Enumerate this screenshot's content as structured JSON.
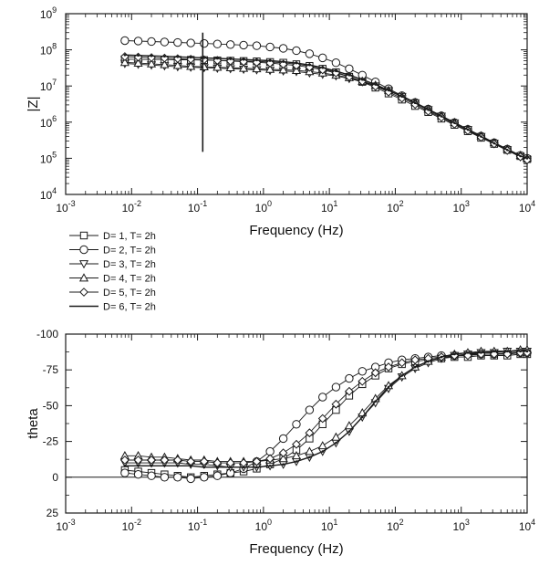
{
  "chart_data": [
    {
      "type": "scatter",
      "ylabel": "|Z|",
      "xlabel": "Frequency (Hz)",
      "xscale": "log",
      "yscale": "log",
      "xlim": [
        0.001,
        10000
      ],
      "ylim": [
        10000,
        1000000000
      ],
      "xticks": [
        "10-3",
        "10-2",
        "10-1",
        "100",
        "101",
        "102",
        "103",
        "104"
      ],
      "yticks": [
        "104",
        "105",
        "106",
        "107",
        "108",
        "109"
      ],
      "x": [
        0.0079,
        0.0126,
        0.02,
        0.0316,
        0.05,
        0.079,
        0.126,
        0.2,
        0.316,
        0.5,
        0.79,
        1.26,
        2.0,
        3.16,
        5.0,
        7.9,
        12.6,
        20,
        31.6,
        50,
        79,
        126,
        200,
        316,
        500,
        790,
        1260,
        2000,
        3160,
        5000,
        7900,
        10000
      ],
      "series": [
        {
          "name": "D= 1, T= 2h",
          "marker": "square",
          "values": [
            55000000.0,
            55000000.0,
            54000000.0,
            54000000.0,
            53000000.0,
            53000000.0,
            52000000.0,
            51000000.0,
            50000000.0,
            49000000.0,
            48000000.0,
            46000000.0,
            44000000.0,
            40000000.0,
            36000000.0,
            30000000.0,
            24000000.0,
            18000000.0,
            13000000.0,
            9000000.0,
            6200000.0,
            4200000.0,
            2800000.0,
            1900000.0,
            1250000.0,
            840000.0,
            560000.0,
            370000.0,
            250000.0,
            170000.0,
            115000.0,
            95000.0
          ]
        },
        {
          "name": "D= 2, T= 2h",
          "marker": "circle",
          "values": [
            180000000.0,
            175000000.0,
            170000000.0,
            165000000.0,
            160000000.0,
            155000000.0,
            150000000.0,
            145000000.0,
            140000000.0,
            135000000.0,
            130000000.0,
            120000000.0,
            110000000.0,
            95000000.0,
            78000000.0,
            60000000.0,
            44000000.0,
            30000000.0,
            20000000.0,
            13000000.0,
            8400000.0,
            5400000.0,
            3500000.0,
            2300000.0,
            1500000.0,
            970000.0,
            630000.0,
            410000.0,
            270000.0,
            180000.0,
            120000.0,
            100000.0
          ]
        },
        {
          "name": "D= 3, T= 2h",
          "marker": "triangle-down",
          "values": [
            42000000.0,
            40000000.0,
            38000000.0,
            36000000.0,
            34000000.0,
            33000000.0,
            32000000.0,
            31000000.0,
            30000000.0,
            29000000.0,
            28000000.0,
            27000000.0,
            26000000.0,
            25000000.0,
            23000000.0,
            21000000.0,
            19000000.0,
            16000000.0,
            13000000.0,
            10000000.0,
            7400000.0,
            5100000.0,
            3400000.0,
            2200000.0,
            1450000.0,
            950000.0,
            620000.0,
            400000.0,
            260000.0,
            170000.0,
            110000.0,
            90000.0
          ]
        },
        {
          "name": "D= 4, T= 2h",
          "marker": "triangle-up",
          "values": [
            45000000.0,
            43000000.0,
            41000000.0,
            39000000.0,
            37000000.0,
            35000000.0,
            34000000.0,
            33000000.0,
            32000000.0,
            31000000.0,
            30000000.0,
            29000000.0,
            28000000.0,
            27000000.0,
            25000000.0,
            23000000.0,
            20000000.0,
            17000000.0,
            13500000.0,
            10500000.0,
            7600000.0,
            5200000.0,
            3500000.0,
            2300000.0,
            1500000.0,
            980000.0,
            640000.0,
            420000.0,
            270000.0,
            180000.0,
            120000.0,
            100000.0
          ]
        },
        {
          "name": "D= 5, T= 2h",
          "marker": "diamond",
          "values": [
            65000000.0,
            63000000.0,
            61000000.0,
            59000000.0,
            57000000.0,
            55000000.0,
            53000000.0,
            51000000.0,
            49000000.0,
            47000000.0,
            45000000.0,
            43000000.0,
            40000000.0,
            37000000.0,
            33000000.0,
            28000000.0,
            23000000.0,
            18000000.0,
            13500000.0,
            9800000.0,
            6800000.0,
            4600000.0,
            3100000.0,
            2000000.0,
            1350000.0,
            880000.0,
            580000.0,
            380000.0,
            250000.0,
            165000.0,
            110000.0,
            90000.0
          ]
        },
        {
          "name": "D= 6, T= 2h",
          "marker": "line",
          "values": [
            72000000.0,
            70000000.0,
            68000000.0,
            66000000.0,
            64000000.0,
            62000000.0,
            60000000.0,
            58000000.0,
            56000000.0,
            54000000.0,
            52000000.0,
            50000000.0,
            47000000.0,
            43000000.0,
            38000000.0,
            32000000.0,
            26000000.0,
            20000000.0,
            15000000.0,
            11000000.0,
            7600000.0,
            5100000.0,
            3400000.0,
            2200000.0,
            1450000.0,
            950000.0,
            620000.0,
            400000.0,
            260000.0,
            170000.0,
            115000.0,
            100000.0
          ]
        }
      ],
      "annotations": [
        {
          "type": "vertical-line",
          "x": 0.12,
          "y_from": 150000,
          "y_to": 300000000
        }
      ]
    },
    {
      "type": "scatter",
      "ylabel": "theta",
      "xlabel": "Frequency (Hz)",
      "xscale": "log",
      "xlim": [
        0.001,
        10000
      ],
      "ylim": [
        25,
        -100
      ],
      "xticks": [
        "10-3",
        "10-2",
        "10-1",
        "100",
        "101",
        "102",
        "103",
        "104"
      ],
      "yticks": [
        "-100",
        "-75",
        "-50",
        "-25",
        "0",
        "25"
      ],
      "zero_line": true,
      "x": [
        0.0079,
        0.0126,
        0.02,
        0.0316,
        0.05,
        0.079,
        0.126,
        0.2,
        0.316,
        0.5,
        0.79,
        1.26,
        2.0,
        3.16,
        5.0,
        7.9,
        12.6,
        20,
        31.6,
        50,
        79,
        126,
        200,
        316,
        500,
        790,
        1260,
        2000,
        3160,
        5000,
        7900,
        10000
      ],
      "series": [
        {
          "name": "D= 1, T= 2h",
          "marker": "square",
          "values": [
            -5,
            -4,
            -3,
            -2,
            -1,
            0,
            -1,
            -2,
            -3,
            -4,
            -6,
            -9,
            -13,
            -19,
            -27,
            -37,
            -47,
            -57,
            -65,
            -71,
            -76,
            -79,
            -81,
            -82,
            -83,
            -84,
            -84,
            -85,
            -85,
            -85,
            -86,
            -86
          ]
        },
        {
          "name": "D= 2, T= 2h",
          "marker": "circle",
          "values": [
            -3,
            -2,
            -1,
            0,
            0,
            1,
            0,
            -1,
            -3,
            -6,
            -11,
            -18,
            -27,
            -37,
            -47,
            -56,
            -63,
            -69,
            -74,
            -77,
            -80,
            -82,
            -83,
            -84,
            -85,
            -85,
            -86,
            -86,
            -86,
            -87,
            -87,
            -87
          ]
        },
        {
          "name": "D= 3, T= 2h",
          "marker": "triangle-down",
          "values": [
            -10,
            -10,
            -10,
            -10,
            -10,
            -9,
            -9,
            -8,
            -7,
            -7,
            -7,
            -8,
            -9,
            -11,
            -14,
            -18,
            -24,
            -32,
            -42,
            -52,
            -62,
            -70,
            -76,
            -80,
            -83,
            -85,
            -86,
            -87,
            -87,
            -88,
            -88,
            -88
          ]
        },
        {
          "name": "D= 4, T= 2h",
          "marker": "triangle-up",
          "values": [
            -15,
            -15,
            -14,
            -14,
            -13,
            -12,
            -12,
            -11,
            -11,
            -11,
            -11,
            -12,
            -13,
            -15,
            -18,
            -22,
            -28,
            -36,
            -45,
            -55,
            -64,
            -71,
            -77,
            -81,
            -84,
            -86,
            -87,
            -88,
            -88,
            -88,
            -89,
            -89
          ]
        },
        {
          "name": "D= 5, T= 2h",
          "marker": "diamond",
          "values": [
            -12,
            -12,
            -12,
            -12,
            -12,
            -11,
            -11,
            -10,
            -10,
            -10,
            -11,
            -13,
            -17,
            -23,
            -31,
            -41,
            -51,
            -60,
            -67,
            -73,
            -77,
            -80,
            -82,
            -83,
            -84,
            -85,
            -85,
            -86,
            -86,
            -86,
            -87,
            -87
          ]
        },
        {
          "name": "D= 6, T= 2h",
          "marker": "line",
          "values": [
            -8,
            -8,
            -8,
            -8,
            -8,
            -8,
            -7,
            -7,
            -7,
            -7,
            -7,
            -8,
            -9,
            -11,
            -14,
            -18,
            -24,
            -32,
            -42,
            -53,
            -63,
            -71,
            -77,
            -81,
            -84,
            -86,
            -87,
            -87,
            -88,
            -88,
            -88,
            -88
          ]
        }
      ]
    }
  ]
}
